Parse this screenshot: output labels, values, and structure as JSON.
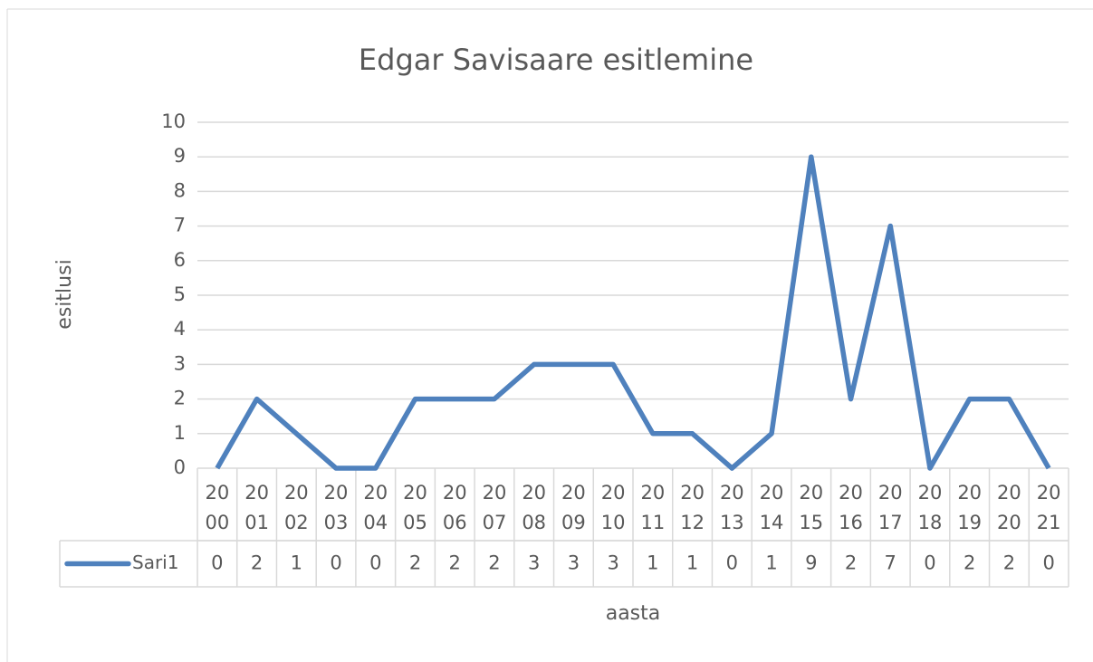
{
  "chart_data": {
    "type": "line",
    "title": "Edgar Savisaare esitlemine",
    "xlabel": "aasta",
    "ylabel": "esitlusi",
    "categories": [
      "2000",
      "2001",
      "2002",
      "2003",
      "2004",
      "2005",
      "2006",
      "2007",
      "2008",
      "2009",
      "2010",
      "2011",
      "2012",
      "2013",
      "2014",
      "2015",
      "2016",
      "2017",
      "2018",
      "2019",
      "2020",
      "2021"
    ],
    "series": [
      {
        "name": "Sari1",
        "color": "#4f81bd",
        "values": [
          0,
          2,
          1,
          0,
          0,
          2,
          2,
          2,
          3,
          3,
          3,
          1,
          1,
          0,
          1,
          9,
          2,
          7,
          0,
          2,
          2,
          0
        ]
      }
    ],
    "ylim": [
      0,
      10
    ],
    "yticks": [
      0,
      1,
      2,
      3,
      4,
      5,
      6,
      7,
      8,
      9,
      10
    ],
    "grid": true,
    "data_table": true
  }
}
